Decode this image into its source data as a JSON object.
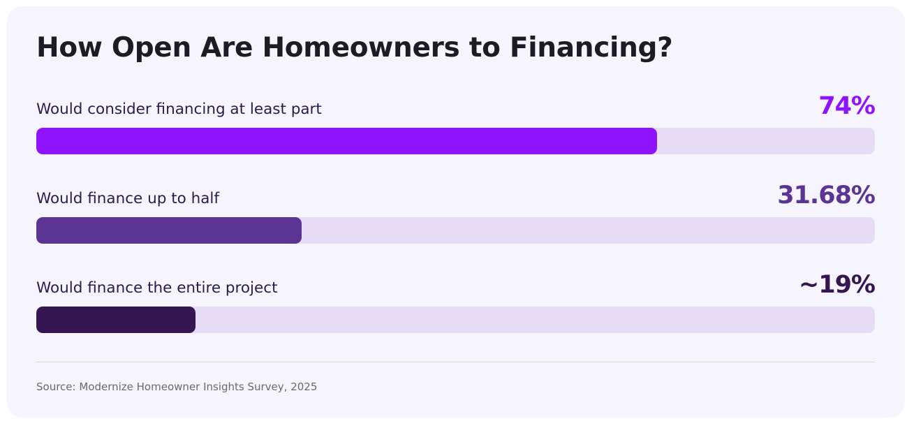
{
  "chart_data": {
    "type": "bar",
    "orientation": "horizontal",
    "title": "How Open Are Homeowners to Financing?",
    "xlim": [
      0,
      100
    ],
    "grid": false,
    "bars": [
      {
        "label": "Would consider financing at least part",
        "value": 74,
        "value_label": "74%",
        "color": "#9013fe",
        "value_color": "#9013fe"
      },
      {
        "label": "Would finance up to half",
        "value": 31.68,
        "value_label": "31.68%",
        "color": "#5b3494",
        "value_color": "#5b3494"
      },
      {
        "label": "Would finance the entire project",
        "value": 19,
        "value_label": "~19%",
        "color": "#361553",
        "value_color": "#361553"
      }
    ],
    "track_color": "#e6dcf6",
    "source": "Source: Modernize Homeowner Insights Survey, 2025"
  }
}
